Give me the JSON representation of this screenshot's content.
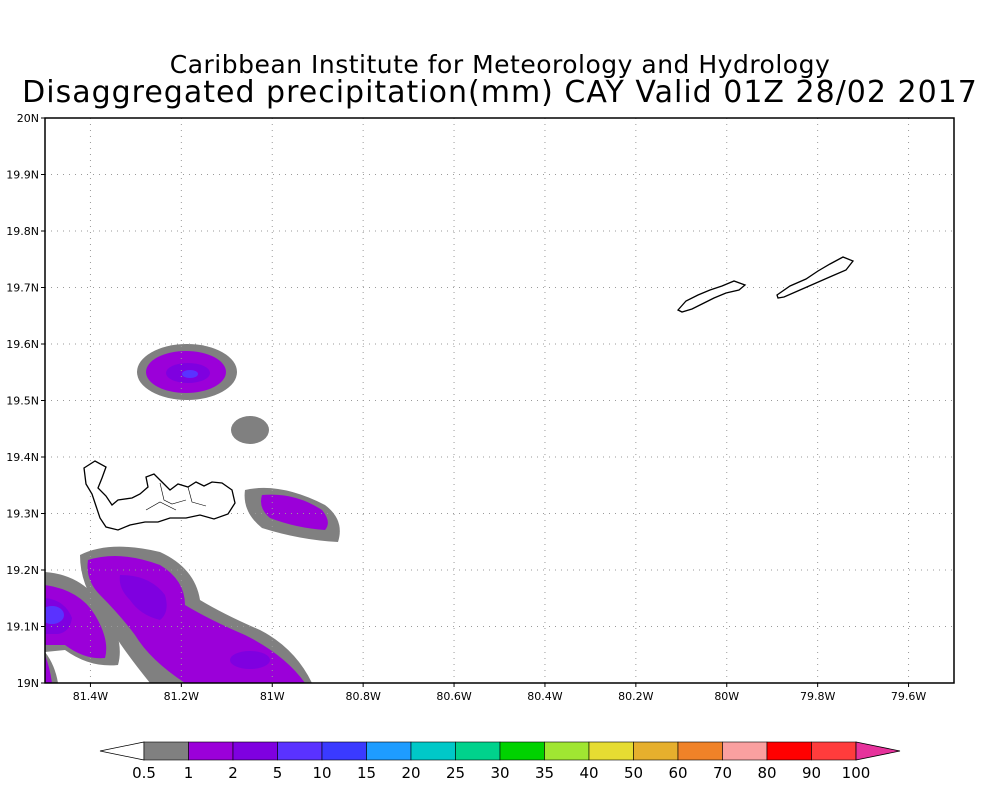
{
  "title": {
    "line1": "Caribbean Institute for Meteorology and Hydrology",
    "line2": "Disaggregated precipitation(mm) CAY Valid 01Z 28/02 2017"
  },
  "map": {
    "lat_labels": [
      "20N",
      "19.9N",
      "19.8N",
      "19.7N",
      "19.6N",
      "19.5N",
      "19.4N",
      "19.3N",
      "19.2N",
      "19.1N",
      "19N"
    ],
    "lon_labels": [
      "81.4W",
      "81.2W",
      "81W",
      "80.8W",
      "80.6W",
      "80.4W",
      "80.2W",
      "80W",
      "79.8W",
      "79.6W"
    ],
    "extent": {
      "lon_min": -81.5,
      "lon_max": -79.5,
      "lat_min": 19.0,
      "lat_max": 20.0
    },
    "grid": "dotted"
  },
  "colorbar": {
    "labels": [
      "0.5",
      "1",
      "2",
      "5",
      "10",
      "15",
      "20",
      "25",
      "30",
      "35",
      "40",
      "50",
      "60",
      "70",
      "80",
      "90",
      "100"
    ],
    "colors": [
      "#808080",
      "#9b00d9",
      "#7f00e0",
      "#5a32ff",
      "#3a3aff",
      "#1e9cff",
      "#00c8c8",
      "#00d28c",
      "#00d200",
      "#a0e632",
      "#e6dc32",
      "#e6af2d",
      "#f08228",
      "#faa0a0",
      "#ff0000",
      "#ff3c3c"
    ],
    "low_end_color": "#ffffff",
    "high_end_color": "#e6329b"
  }
}
